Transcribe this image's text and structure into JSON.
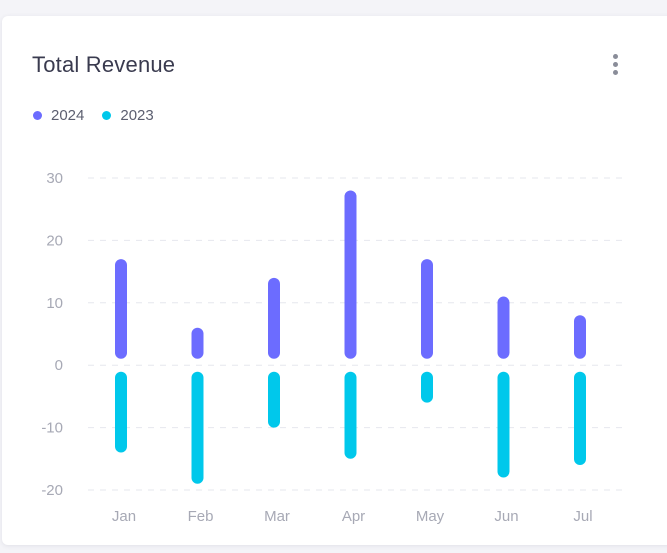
{
  "card": {
    "title": "Total Revenue",
    "menu_icon": "more-vertical-icon"
  },
  "colors": {
    "series_2024": "#6c6cff",
    "series_2023": "#00c8eb",
    "grid": "#e6e7ee",
    "tick": "#a7a9b5"
  },
  "chart_data": {
    "type": "bar",
    "title": "Total Revenue",
    "xlabel": "",
    "ylabel": "",
    "categories": [
      "Jan",
      "Feb",
      "Mar",
      "Apr",
      "May",
      "Jun",
      "Jul"
    ],
    "series": [
      {
        "name": "2024",
        "values": [
          17,
          6,
          14,
          28,
          17,
          11,
          8
        ]
      },
      {
        "name": "2023",
        "values": [
          -14,
          -19,
          -10,
          -15,
          -6,
          -18,
          -16
        ]
      }
    ],
    "yticks": [
      30,
      20,
      10,
      0,
      -10,
      -20
    ],
    "ylim": [
      -20,
      30
    ],
    "grid": true,
    "legend_position": "top-left"
  }
}
